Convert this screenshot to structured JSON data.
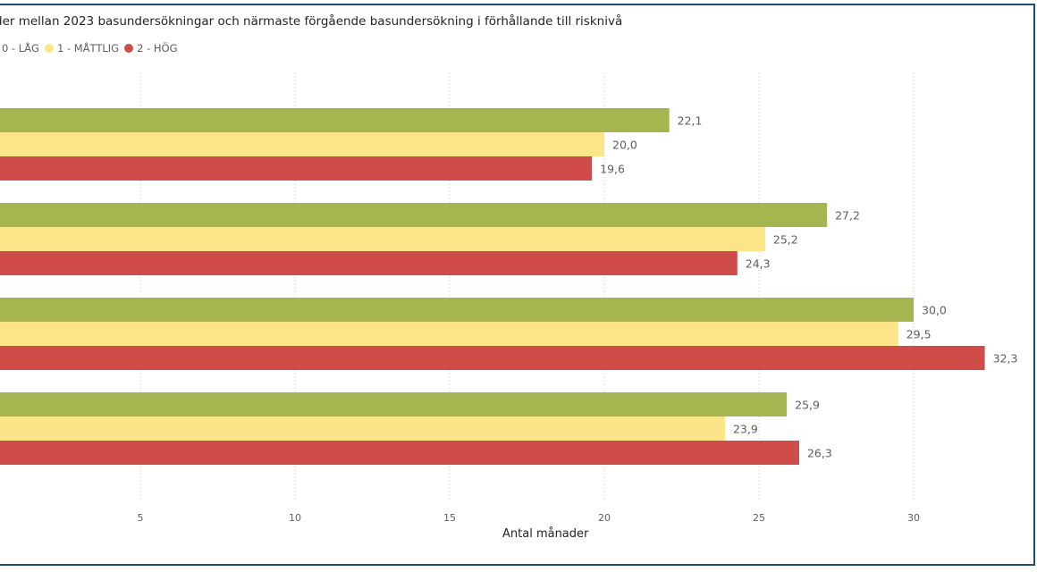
{
  "chart_data": {
    "type": "bar",
    "orientation": "horizontal",
    "title": "der mellan 2023 basundersökningar och närmaste förgående basundersökning i förhållande till risknivå",
    "xlabel": "Antal månader",
    "ylabel": "",
    "xlim": [
      0,
      33
    ],
    "xticks": [
      5,
      10,
      15,
      20,
      25,
      30
    ],
    "tick_labels": [
      "5",
      "10",
      "15",
      "20",
      "25",
      "30"
    ],
    "grid": "vertical dotted",
    "legend_position": "top-left",
    "categories": [
      "",
      "",
      "",
      ""
    ],
    "series": [
      {
        "name": "0 - LÅG",
        "color": "#a5b550",
        "values": [
          22.1,
          27.2,
          30.0,
          25.9
        ],
        "labels": [
          "22,1",
          "27,2",
          "30,0",
          "25,9"
        ]
      },
      {
        "name": "1 - MÅTTLIG",
        "color": "#fce588",
        "values": [
          20.0,
          25.2,
          29.5,
          23.9
        ],
        "labels": [
          "20,0",
          "25,2",
          "29,5",
          "23,9"
        ]
      },
      {
        "name": "2 - HÖG",
        "color": "#d04c48",
        "values": [
          19.6,
          24.3,
          32.3,
          26.3
        ],
        "labels": [
          "19,6",
          "24,3",
          "32,3",
          "26,3"
        ]
      }
    ]
  }
}
